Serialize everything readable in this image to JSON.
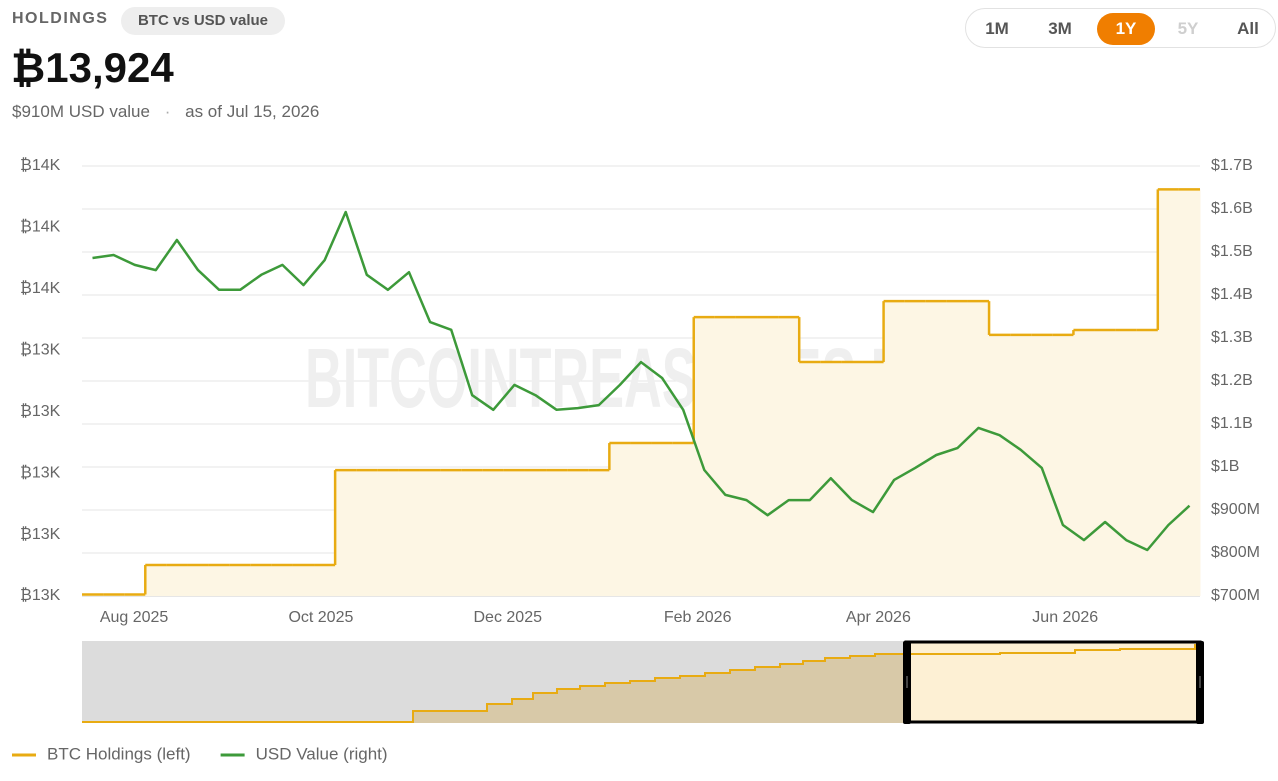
{
  "header": {
    "title": "HOLDINGS",
    "badge": "BTC vs USD value",
    "amount": "₿13,924",
    "usd_value": "$910M USD value",
    "separator": "·",
    "as_of": "as of Jul 15, 2026"
  },
  "range_buttons": [
    {
      "label": "1M",
      "state": "normal"
    },
    {
      "label": "3M",
      "state": "normal"
    },
    {
      "label": "1Y",
      "state": "active"
    },
    {
      "label": "5Y",
      "state": "disabled"
    },
    {
      "label": "All",
      "state": "normal"
    }
  ],
  "chart_data": {
    "type": "line",
    "watermark": "BITCOINTREASURIES.NET",
    "xlim": [
      "2025-07-15",
      "2026-07-15"
    ],
    "xticks": [
      {
        "value": "2025-08",
        "label": "Aug 2025"
      },
      {
        "value": "2025-10",
        "label": "Oct 2025"
      },
      {
        "value": "2025-12",
        "label": "Dec 2025"
      },
      {
        "value": "2026-02",
        "label": "Feb 2026"
      },
      {
        "value": "2026-04",
        "label": "Apr 2026"
      },
      {
        "value": "2026-06",
        "label": "Jun 2026"
      }
    ],
    "ylim": [
      12600,
      14000
    ],
    "yticks": [
      {
        "value": 12600,
        "label": "₿13K"
      },
      {
        "value": 12800,
        "label": "₿13K"
      },
      {
        "value": 13000,
        "label": "₿13K"
      },
      {
        "value": 13200,
        "label": "₿13K"
      },
      {
        "value": 13400,
        "label": "₿13K"
      },
      {
        "value": 13600,
        "label": "₿14K"
      },
      {
        "value": 13800,
        "label": "₿14K"
      },
      {
        "value": 14000,
        "label": "₿14K"
      }
    ],
    "y2lim": [
      700000000,
      1700000000
    ],
    "y2ticks": [
      {
        "value": 700000000,
        "label": "$700M"
      },
      {
        "value": 800000000,
        "label": "$800M"
      },
      {
        "value": 900000000,
        "label": "$900M"
      },
      {
        "value": 1000000000,
        "label": "$1B"
      },
      {
        "value": 1100000000,
        "label": "$1.1B"
      },
      {
        "value": 1200000000,
        "label": "$1.2B"
      },
      {
        "value": 1300000000,
        "label": "$1.3B"
      },
      {
        "value": 1400000000,
        "label": "$1.4B"
      },
      {
        "value": 1500000000,
        "label": "$1.5B"
      },
      {
        "value": 1600000000,
        "label": "$1.6B"
      },
      {
        "value": 1700000000,
        "label": "$1.7B"
      }
    ],
    "grid": true,
    "legend": "bottom-left",
    "series": [
      {
        "name": "BTC Holdings (left)",
        "color": "#e8ab12",
        "fill": "#fdf6e4",
        "style": "step",
        "values": [
          12605,
          12605,
          12605,
          12701,
          12701,
          12701,
          12701,
          12701,
          12701,
          12701,
          12701,
          12701,
          13010,
          13010,
          13010,
          13010,
          13010,
          13010,
          13010,
          13010,
          13010,
          13010,
          13010,
          13010,
          13010,
          13098,
          13098,
          13098,
          13098,
          13508,
          13508,
          13508,
          13508,
          13508,
          13362,
          13362,
          13362,
          13362,
          13560,
          13560,
          13560,
          13560,
          13560,
          13450,
          13450,
          13450,
          13450,
          13466,
          13466,
          13466,
          13466,
          13924,
          13924
        ]
      },
      {
        "name": "USD Value (right)",
        "color": "#3d9a3a",
        "axis": "y2",
        "style": "line",
        "values": [
          1486000000,
          1493000000,
          1470000000,
          1458000000,
          1528000000,
          1458000000,
          1412000000,
          1412000000,
          1447000000,
          1470000000,
          1423000000,
          1481000000,
          1593000000,
          1447000000,
          1412000000,
          1453000000,
          1337000000,
          1319000000,
          1167000000,
          1133000000,
          1191000000,
          1167000000,
          1133000000,
          1137000000,
          1144000000,
          1191000000,
          1244000000,
          1207000000,
          1133000000,
          993000000,
          935000000,
          923000000,
          888000000,
          923000000,
          923000000,
          974000000,
          923000000,
          895000000,
          970000000,
          998000000,
          1028000000,
          1044000000,
          1091000000,
          1074000000,
          1040000000,
          998000000,
          865000000,
          830000000,
          872000000,
          830000000,
          807000000,
          865000000,
          910000000
        ]
      }
    ]
  }
}
